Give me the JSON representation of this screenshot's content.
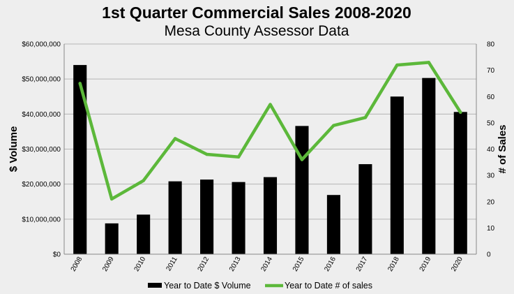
{
  "chart_data": {
    "type": "bar",
    "title": "1st Quarter Commercial Sales 2008-2020",
    "subtitle": "Mesa County Assessor Data",
    "categories": [
      "2008",
      "2009",
      "2010",
      "2011",
      "2012",
      "2013",
      "2014",
      "2015",
      "2016",
      "2017",
      "2018",
      "2019",
      "2020"
    ],
    "series": [
      {
        "name": "Year to Date $ Volume",
        "type": "bar",
        "axis": "left",
        "color": "#000000",
        "values": [
          54000000,
          8800000,
          11300000,
          20800000,
          21300000,
          20600000,
          22000000,
          36600000,
          16900000,
          25700000,
          45000000,
          50300000,
          40600000
        ]
      },
      {
        "name": "Year to Date # of sales",
        "type": "line",
        "axis": "right",
        "color": "#5cb83a",
        "values": [
          65,
          21,
          28,
          44,
          38,
          37,
          57,
          36,
          49,
          52,
          72,
          73,
          54
        ]
      }
    ],
    "ylabel": "$ Volume",
    "y2label": "# of Sales",
    "ylim": [
      0,
      60000000
    ],
    "y2lim": [
      0,
      80
    ],
    "yticks": [
      "$0",
      "$10,000,000",
      "$20,000,000",
      "$30,000,000",
      "$40,000,000",
      "$50,000,000",
      "$60,000,000"
    ],
    "y2ticks": [
      "0",
      "10",
      "20",
      "30",
      "40",
      "50",
      "60",
      "70",
      "80"
    ],
    "grid": true,
    "legend": "bottom"
  }
}
